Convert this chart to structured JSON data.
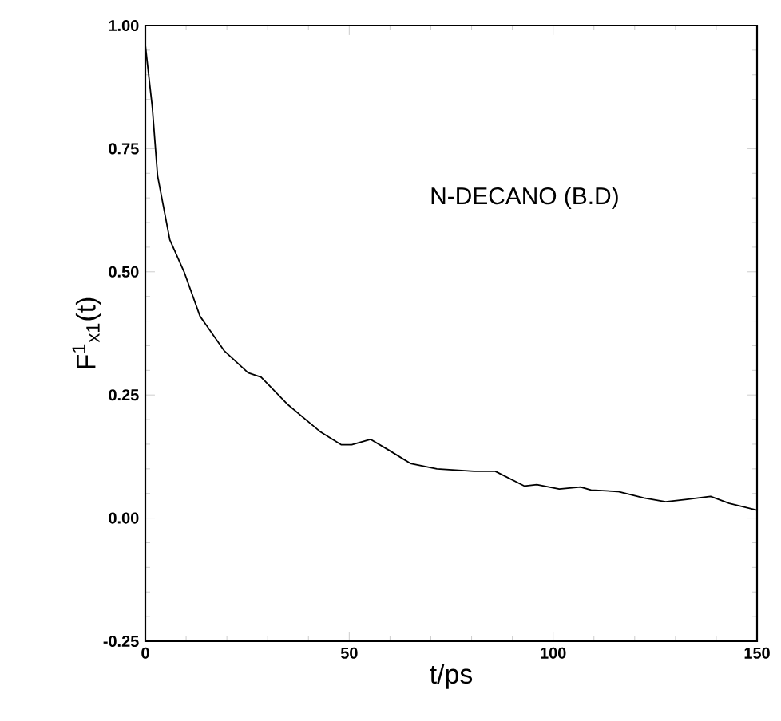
{
  "chart_data": {
    "type": "line",
    "xlabel": "t/ps",
    "ylabel": "F$^{1}$$_{x1}$(t)",
    "annotations": [
      "N-DECANO (B.D)"
    ],
    "x": [
      0,
      1.7,
      3,
      6,
      9.5,
      13.4,
      19.3,
      25.2,
      28.4,
      35,
      42.8,
      48,
      50.6,
      55.2,
      59.7,
      65,
      71.5,
      80.6,
      85.8,
      93,
      96,
      101.5,
      106.7,
      109.3,
      115.8,
      122.3,
      127.6,
      132.8,
      138.6,
      143.2,
      150
    ],
    "series": [
      {
        "color": "#000000",
        "values": [
          0.96,
          0.835,
          0.695,
          0.565,
          0.5,
          0.41,
          0.34,
          0.295,
          0.286,
          0.23,
          0.176,
          0.149,
          0.149,
          0.16,
          0.138,
          0.111,
          0.1,
          0.095,
          0.095,
          0.065,
          0.068,
          0.059,
          0.063,
          0.057,
          0.054,
          0.041,
          0.033,
          0.038,
          0.044,
          0.03,
          0.016
        ]
      }
    ],
    "xlim": [
      0,
      150
    ],
    "ylim": [
      -0.25,
      1.0
    ],
    "xticks": [
      0,
      50,
      100,
      150
    ],
    "yticks": [
      {
        "value": -0.25,
        "label": "-0.25"
      },
      {
        "value": 0,
        "label": "0.00"
      },
      {
        "value": 0.25,
        "label": "0.25"
      },
      {
        "value": 0.5,
        "label": "0.50"
      },
      {
        "value": 0.75,
        "label": "0.75"
      },
      {
        "value": 1.0,
        "label": "1.00"
      }
    ]
  }
}
